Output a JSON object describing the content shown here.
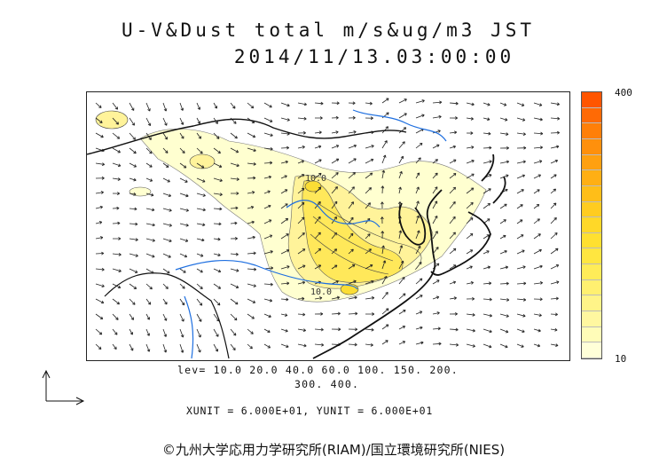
{
  "header": {
    "title_line1": "U-V&Dust total m/s&ug/m3 JST",
    "title_line2": "2014/11/13.03:00:00"
  },
  "colorbar": {
    "max_label": "400",
    "min_label": "10",
    "colors": [
      "#ffffd8",
      "#fffcb8",
      "#fff7a0",
      "#fff488",
      "#fff070",
      "#ffec58",
      "#ffe640",
      "#ffe030",
      "#ffd828",
      "#ffcc20",
      "#ffbe18",
      "#ffaf14",
      "#ffa010",
      "#ff900c",
      "#ff7f08",
      "#ff6a05",
      "#ff5500"
    ]
  },
  "contour_levels": {
    "line1": "lev= 10.0 20.0 40.0 60.0 100. 150. 200.",
    "line2": "300. 400."
  },
  "map": {
    "contour_labels": [
      "10.0",
      "10.0"
    ],
    "colors": {
      "coast": "#111111",
      "river": "#1e6fe0",
      "dust_low": "#ffffd0",
      "dust_mid": "#fff39a",
      "dust_high": "#ffe85a",
      "dust_peak": "#fbdd35"
    }
  },
  "units": "XUNIT = 6.000E+01, YUNIT = 6.000E+01",
  "credit": "©九州大学応用力学研究所(RIAM)/国立環境研究所(NIES)"
}
